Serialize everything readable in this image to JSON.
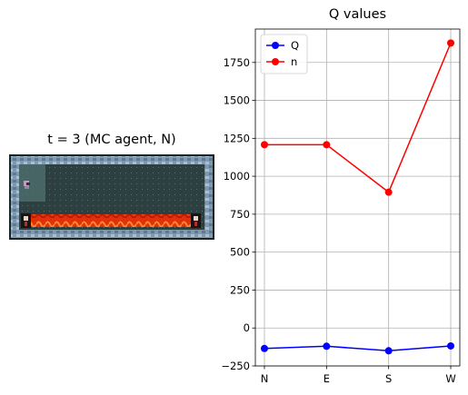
{
  "game": {
    "title": "t = 3 (MC agent, N)"
  },
  "chart_data": {
    "type": "line",
    "title": "Q values",
    "categories": [
      "N",
      "E",
      "S",
      "W"
    ],
    "series": [
      {
        "name": "Q",
        "color": "#0000ff",
        "values": [
          -135,
          -120,
          -150,
          -118
        ]
      },
      {
        "name": "n",
        "color": "#ff0000",
        "values": [
          1208,
          1208,
          895,
          1878
        ]
      }
    ],
    "yticks": [
      -250,
      0,
      250,
      500,
      750,
      1000,
      1250,
      1500,
      1750
    ],
    "ylim": [
      -250,
      1970
    ],
    "grid": true,
    "legend_position": "top-left"
  }
}
